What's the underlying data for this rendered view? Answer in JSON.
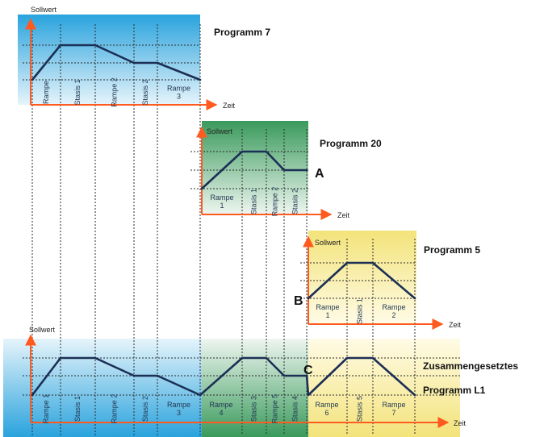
{
  "programs": [
    {
      "key": "p7",
      "title": "Programm 7",
      "y_label": "Sollwert",
      "x_label": "Zeit",
      "segments": [
        {
          "label": "Rampe",
          "vertical": true
        },
        {
          "label": "Stasis 1",
          "vertical": true
        },
        {
          "label": "Rampe 2",
          "vertical": true
        },
        {
          "label": "Stasis 2",
          "vertical": true
        },
        {
          "label": "Rampe 3",
          "vertical": false
        }
      ]
    },
    {
      "key": "p20",
      "title": "Programm 20",
      "y_label": "Sollwert",
      "x_label": "Zeit",
      "segments": [
        {
          "label": "Rampe 1",
          "vertical": false
        },
        {
          "label": "Stasis 1",
          "vertical": true
        },
        {
          "label": "Rampe 2",
          "vertical": true
        },
        {
          "label": "Stasis 2",
          "vertical": true
        }
      ]
    },
    {
      "key": "p5",
      "title": "Programm 5",
      "y_label": "Sollwert",
      "x_label": "Zeit",
      "segments": [
        {
          "label": "Rampe 1",
          "vertical": false
        },
        {
          "label": "Stasis 1",
          "vertical": true
        },
        {
          "label": "Rampe 2",
          "vertical": false
        }
      ]
    },
    {
      "key": "l1",
      "title_line1": "Zusammengesetztes",
      "title_line2": "Programm L1",
      "y_label": "Sollwert",
      "x_label": "Zeit",
      "segments": [
        {
          "label": "Rampe 1",
          "vertical": true
        },
        {
          "label": "Stasis 1",
          "vertical": true
        },
        {
          "label": "Rampe 2",
          "vertical": true
        },
        {
          "label": "Stasis 2",
          "vertical": true
        },
        {
          "label": "Rampe 3",
          "vertical": false
        },
        {
          "label": "Rampe 4",
          "vertical": false
        },
        {
          "label": "Stasis 3",
          "vertical": true
        },
        {
          "label": "Rampe 5",
          "vertical": true
        },
        {
          "label": "Stasis 4",
          "vertical": true
        },
        {
          "label": "Rampe 6",
          "vertical": false
        },
        {
          "label": "Stasis 5",
          "vertical": true
        },
        {
          "label": "Rampe 7",
          "vertical": false
        }
      ]
    }
  ],
  "markers": {
    "a": "A",
    "b": "B",
    "c": "C"
  },
  "colors": {
    "blue_top": "#2aa3dd",
    "blue_bottom": "#e6f4fb",
    "green_top": "#3a9a5c",
    "green_bottom": "#eef6f0",
    "yellow_top": "#f3e37a",
    "yellow_bottom": "#fffbe6",
    "axis": "#ff5a1f",
    "profile": "#1c2f55"
  }
}
